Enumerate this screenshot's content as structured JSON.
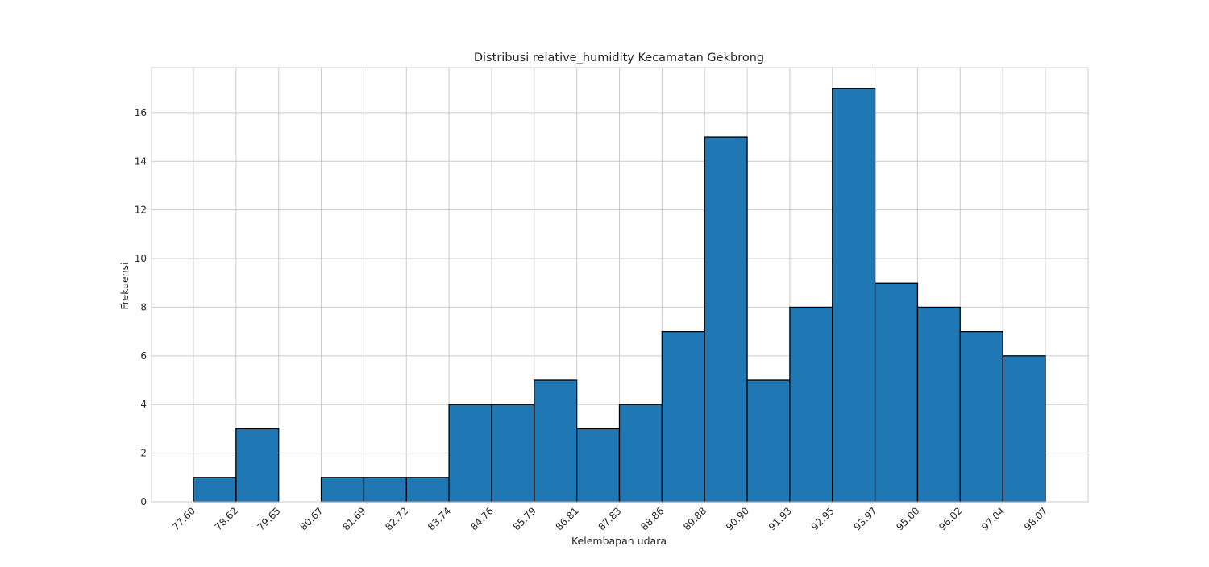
{
  "chart_data": {
    "type": "bar",
    "title": "Distribusi relative_humidity Kecamatan Gekbrong",
    "xlabel": "Kelembapan udara",
    "ylabel": "Frekuensi",
    "bin_edges": [
      77.6,
      78.62,
      79.65,
      80.67,
      81.69,
      82.72,
      83.74,
      84.76,
      85.79,
      86.81,
      87.83,
      88.86,
      89.88,
      90.9,
      91.93,
      92.95,
      93.97,
      95.0,
      96.02,
      97.04,
      98.07
    ],
    "xtick_labels": [
      "77.60",
      "78.62",
      "79.65",
      "80.67",
      "81.69",
      "82.72",
      "83.74",
      "84.76",
      "85.79",
      "86.81",
      "87.83",
      "88.86",
      "89.88",
      "90.90",
      "91.93",
      "92.95",
      "93.97",
      "95.00",
      "96.02",
      "97.04",
      "98.07"
    ],
    "values": [
      1,
      3,
      0,
      1,
      1,
      1,
      4,
      4,
      5,
      3,
      4,
      7,
      15,
      5,
      8,
      17,
      9,
      8,
      7,
      6
    ],
    "yticks": [
      0,
      2,
      4,
      6,
      8,
      10,
      12,
      14,
      16
    ],
    "ytick_labels": [
      "0",
      "2",
      "4",
      "6",
      "8",
      "10",
      "12",
      "14",
      "16"
    ],
    "ylim": [
      0,
      17.85
    ],
    "grid": true,
    "colors": {
      "bar_fill": "#1f77b4",
      "bar_edge": "#000000",
      "grid": "#cccccc"
    }
  }
}
